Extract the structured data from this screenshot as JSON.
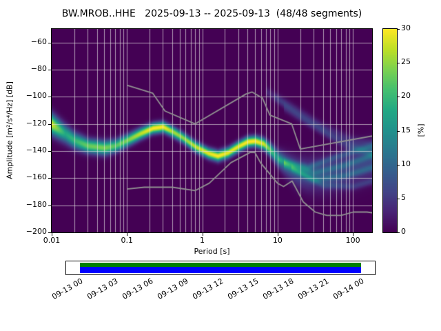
{
  "title": "BW.MROB..HHE   2025-09-13 -- 2025-09-13  (48/48 segments)",
  "axes": {
    "xlabel": "Period [s]",
    "ylabel": "Amplitude [m²/s⁴/Hz] [dB]",
    "x_tick_labels": [
      "0.01",
      "0.1",
      "1",
      "10",
      "100"
    ],
    "x_tick_values": [
      0.01,
      0.1,
      1,
      10,
      100
    ],
    "y_tick_labels": [
      "−60",
      "−80",
      "−100",
      "−120",
      "−140",
      "−160",
      "−180",
      "−200"
    ],
    "y_tick_values": [
      -60,
      -80,
      -100,
      -120,
      -140,
      -160,
      -180,
      -200
    ]
  },
  "colorbar": {
    "label": "[%]",
    "tick_labels": [
      "0",
      "5",
      "10",
      "15",
      "20",
      "25",
      "30"
    ],
    "tick_values": [
      0,
      5,
      10,
      15,
      20,
      25,
      30
    ],
    "min": 0,
    "max": 30,
    "colormap": "viridis",
    "stops": [
      [
        0.0,
        "#440154"
      ],
      [
        0.1,
        "#482475"
      ],
      [
        0.2,
        "#414487"
      ],
      [
        0.3,
        "#355f8d"
      ],
      [
        0.4,
        "#2a788e"
      ],
      [
        0.5,
        "#21918c"
      ],
      [
        0.6,
        "#22a884"
      ],
      [
        0.7,
        "#44bf70"
      ],
      [
        0.8,
        "#7ad151"
      ],
      [
        0.9,
        "#bddf26"
      ],
      [
        1.0,
        "#fde725"
      ]
    ]
  },
  "chart_data": {
    "type": "heatmap",
    "title": "BW.MROB..HHE   2025-09-13 -- 2025-09-13  (48/48 segments)",
    "xlabel": "Period [s]",
    "ylabel": "Amplitude [m²/s⁴/Hz] [dB]",
    "xscale": "log",
    "xlim": [
      0.01,
      180
    ],
    "ylim": [
      -200,
      -50
    ],
    "grid": true,
    "background_color": "#440154",
    "colorbar_range_percent": [
      0,
      30
    ],
    "psd_mode_curve": {
      "description": "dominant probability ridge of the PPSD (period in s, amplitude in dB, gaussian spread in dB, peak probability in %)",
      "periods_s": [
        0.01,
        0.015,
        0.02,
        0.03,
        0.05,
        0.07,
        0.1,
        0.15,
        0.22,
        0.3,
        0.4,
        0.55,
        0.8,
        1.2,
        1.6,
        2.2,
        3,
        4,
        5,
        6.5,
        8,
        10,
        13,
        18,
        25,
        40,
        70,
        120,
        180
      ],
      "amplitude_db": [
        -120,
        -127,
        -132,
        -136,
        -137.5,
        -136,
        -132,
        -127,
        -123,
        -122,
        -125.5,
        -130,
        -136.5,
        -141.5,
        -143.5,
        -141,
        -136.5,
        -133,
        -132.5,
        -134.5,
        -139,
        -145,
        -150,
        -155,
        -157,
        -157,
        -154,
        -150,
        -147
      ],
      "spread_db": [
        5,
        4.5,
        4,
        3.5,
        3.5,
        3.2,
        3,
        2.8,
        2.6,
        2.6,
        2.6,
        2.6,
        2.6,
        2.6,
        2.6,
        2.6,
        2.6,
        2.6,
        2.6,
        2.8,
        3.2,
        4,
        5.5,
        7,
        8,
        9,
        9,
        9,
        9
      ],
      "peak_percent": [
        28,
        18,
        20,
        23,
        24,
        22,
        24,
        27,
        30,
        30,
        26,
        25,
        27,
        29,
        30,
        29,
        29,
        30,
        30,
        28,
        22,
        15,
        10,
        8,
        7,
        6,
        6,
        6,
        6
      ]
    },
    "faint_curves": [
      {
        "periods_s": [
          7,
          15,
          40,
          100,
          180
        ],
        "amplitude_db": [
          -96,
          -107,
          -122,
          -132,
          -135
        ],
        "spread_db": 2.5,
        "peak_percent": 3
      },
      {
        "periods_s": [
          9,
          20,
          50,
          120,
          180
        ],
        "amplitude_db": [
          -100,
          -114,
          -128,
          -138,
          -141
        ],
        "spread_db": 2.2,
        "peak_percent": 2.5
      },
      {
        "periods_s": [
          12,
          30,
          80,
          180
        ],
        "amplitude_db": [
          -108,
          -122,
          -136,
          -142
        ],
        "spread_db": 2.2,
        "peak_percent": 2.5
      },
      {
        "periods_s": [
          10,
          25,
          60,
          180
        ],
        "amplitude_db": [
          -146,
          -152,
          -144,
          -136
        ],
        "spread_db": 1.8,
        "peak_percent": 5
      },
      {
        "periods_s": [
          12,
          30,
          80,
          180
        ],
        "amplitude_db": [
          -148,
          -156,
          -150,
          -143
        ],
        "spread_db": 1.8,
        "peak_percent": 5
      },
      {
        "periods_s": [
          12,
          30,
          80,
          180
        ],
        "amplitude_db": [
          -150,
          -161,
          -158,
          -152
        ],
        "spread_db": 1.8,
        "peak_percent": 5
      },
      {
        "periods_s": [
          15,
          40,
          100,
          180
        ],
        "amplitude_db": [
          -152,
          -165,
          -166,
          -162
        ],
        "spread_db": 1.8,
        "peak_percent": 4
      }
    ],
    "noise_models": {
      "color": "#919191",
      "high_nhnm": [
        [
          0.1,
          -91.5
        ],
        [
          0.22,
          -97.4
        ],
        [
          0.32,
          -110.5
        ],
        [
          0.8,
          -120.0
        ],
        [
          3.8,
          -98.0
        ],
        [
          4.6,
          -96.5
        ],
        [
          6.3,
          -101.0
        ],
        [
          7.9,
          -113.5
        ],
        [
          15.4,
          -120.0
        ],
        [
          20.0,
          -138.5
        ],
        [
          354.8,
          -126.0
        ]
      ],
      "low_nlnm": [
        [
          0.1,
          -168.0
        ],
        [
          0.17,
          -166.7
        ],
        [
          0.4,
          -166.7
        ],
        [
          0.8,
          -169.2
        ],
        [
          1.24,
          -163.7
        ],
        [
          2.4,
          -148.6
        ],
        [
          4.3,
          -141.1
        ],
        [
          5.0,
          -141.1
        ],
        [
          6.0,
          -149.0
        ],
        [
          10.0,
          -163.8
        ],
        [
          12.0,
          -166.2
        ],
        [
          15.6,
          -162.1
        ],
        [
          21.9,
          -177.5
        ],
        [
          31.6,
          -185.0
        ],
        [
          45.0,
          -187.5
        ],
        [
          70.0,
          -187.5
        ],
        [
          101.0,
          -185.0
        ],
        [
          154.0,
          -185.0
        ],
        [
          328.0,
          -187.5
        ]
      ]
    }
  },
  "timeline": {
    "tick_labels": [
      "09-13 00",
      "09-13 03",
      "09-13 06",
      "09-13 09",
      "09-13 12",
      "09-13 15",
      "09-13 18",
      "09-13 21",
      "09-14 00"
    ],
    "processed_color": "#008000",
    "data_color": "#0000ff"
  }
}
